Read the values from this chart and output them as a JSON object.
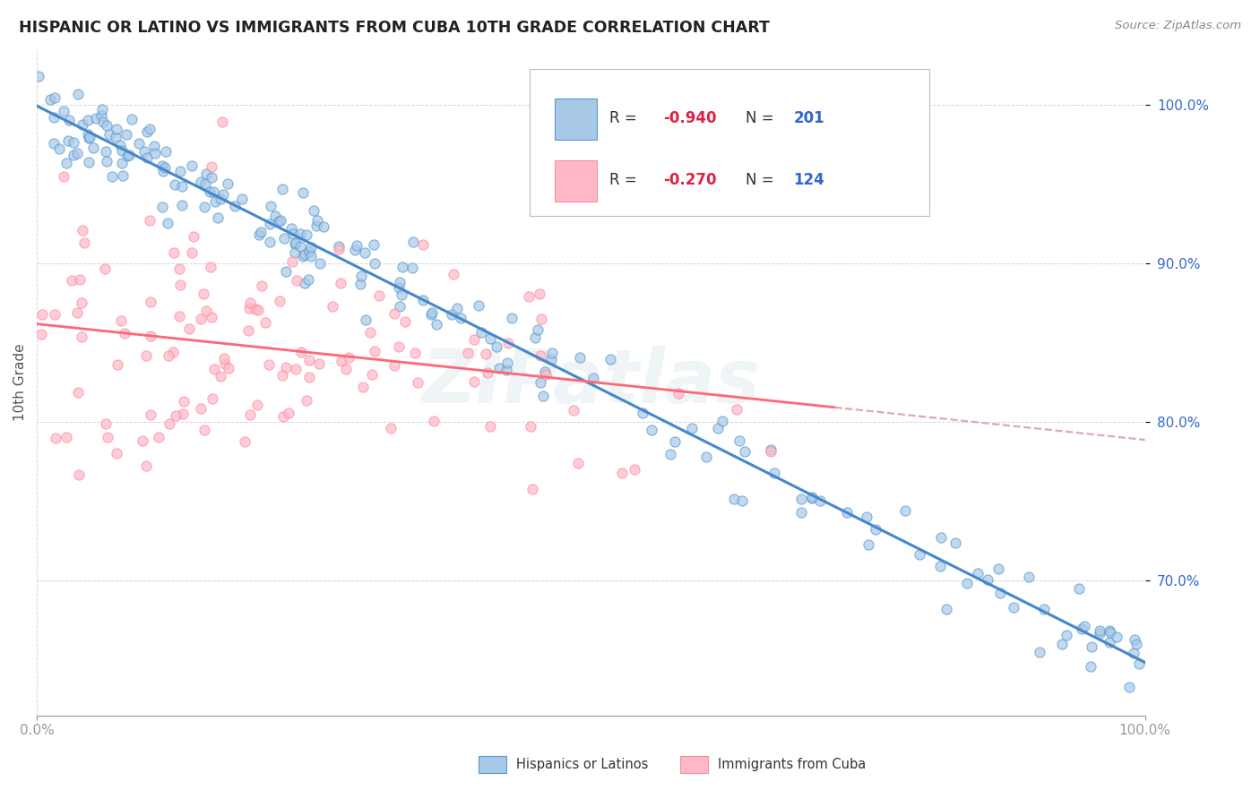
{
  "title": "HISPANIC OR LATINO VS IMMIGRANTS FROM CUBA 10TH GRADE CORRELATION CHART",
  "source_text": "Source: ZipAtlas.com",
  "ylabel": "10th Grade",
  "xlim": [
    0.0,
    1.0
  ],
  "ylim": [
    0.615,
    1.035
  ],
  "ytick_positions": [
    0.7,
    0.8,
    0.9,
    1.0
  ],
  "blue_R": -0.94,
  "blue_N": 201,
  "pink_R": -0.27,
  "pink_N": 124,
  "blue_face_color": "#A8C8E8",
  "blue_edge_color": "#5599CC",
  "pink_face_color": "#FFB8C8",
  "pink_edge_color": "#FF8899",
  "trendline_blue_color": "#4488CC",
  "trendline_pink_solid_color": "#FF6677",
  "trendline_pink_dashed_color": "#DDAAAA",
  "watermark_text": "ZIPatlas",
  "legend_R_color": "#DD2244",
  "legend_N_color": "#3366CC",
  "background_color": "#FFFFFF",
  "grid_color": "#CCCCCC",
  "title_color": "#222222",
  "axis_color": "#999999",
  "bottom_legend_blue_label": "Hispanics or Latinos",
  "bottom_legend_pink_label": "Immigrants from Cuba"
}
